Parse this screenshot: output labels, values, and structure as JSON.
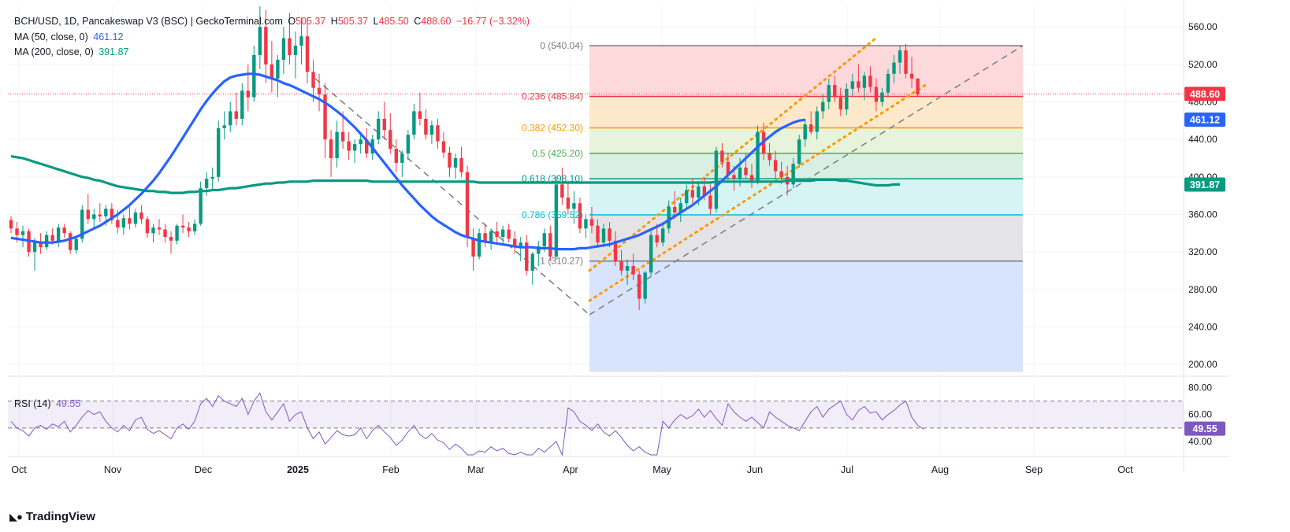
{
  "header": {
    "symbol": "BCH/USD, 1D, Pancakeswap V3 (BSC) | GeckoTerminal.com",
    "o_label": "O",
    "o_value": "505.37",
    "h_label": "H",
    "h_value": "505.37",
    "l_label": "L",
    "l_value": "485.50",
    "c_label": "C",
    "c_value": "488.60",
    "change": "−16.77 (−3.32%)"
  },
  "indicators": {
    "ma50": {
      "label": "MA (50, close, 0)",
      "value": "461.12",
      "color": "#2962ff"
    },
    "ma200": {
      "label": "MA (200, close, 0)",
      "value": "391.87",
      "color": "#089981"
    },
    "rsi": {
      "label": "RSI (14)",
      "value": "49.55",
      "color": "#7e57c2"
    }
  },
  "colors": {
    "up": "#089981",
    "down": "#f23645",
    "grid": "#f0f3fa",
    "axis_text": "#131722"
  },
  "branding": {
    "name": "TradingView"
  },
  "chart_data": {
    "type": "candlestick",
    "title": "BCH/USD, 1D, Pancakeswap V3 (BSC) | GeckoTerminal.com",
    "price_axis": {
      "ticks": [
        "560.00",
        "520.00",
        "480.00",
        "440.00",
        "400.00",
        "360.00",
        "320.00",
        "280.00",
        "240.00",
        "200.00"
      ],
      "range": [
        190,
        582
      ]
    },
    "time_axis": {
      "ticks": [
        "Oct",
        "Nov",
        "Dec",
        "2025",
        "Feb",
        "Mar",
        "Apr",
        "May",
        "Jun",
        "Jul",
        "Aug",
        "Sep",
        "Oct"
      ],
      "bold": [
        "2025"
      ]
    },
    "price_badges": [
      {
        "value": "488.60",
        "color": "#f23645"
      },
      {
        "value": "461.12",
        "color": "#2962ff"
      },
      {
        "value": "391.87",
        "color": "#089981"
      }
    ],
    "current_price": 488.6,
    "fibonacci": [
      {
        "ratio": "0",
        "label": "0 (540.04)",
        "price": 540.04,
        "color": "#787b86",
        "fill": "#fdd7da"
      },
      {
        "ratio": "0.236",
        "label": "0.236 (485.84)",
        "price": 485.84,
        "color": "#f23645",
        "fill": "#fde7c8"
      },
      {
        "ratio": "0.382",
        "label": "0.382 (452.30)",
        "price": 452.3,
        "color": "#ff9800",
        "fill": "#e6f3d9"
      },
      {
        "ratio": "0.5",
        "label": "0.5 (425.20)",
        "price": 425.2,
        "color": "#4caf50",
        "fill": "#d7eee3"
      },
      {
        "ratio": "0.618",
        "label": "0.618 (398.10)",
        "price": 398.1,
        "color": "#089981",
        "fill": "#d5f3f3"
      },
      {
        "ratio": "0.786",
        "label": "0.786 (359.52)",
        "price": 359.52,
        "color": "#00bcd4",
        "fill": "#e3e3e5"
      },
      {
        "ratio": "1",
        "label": "1 (310.27)",
        "price": 310.27,
        "color": "#787b86",
        "fill": "#d6e1fc"
      }
    ],
    "fib_extension_bottom": 192,
    "ohlc_series": [
      [
        354,
        358,
        340,
        345
      ],
      [
        345,
        352,
        330,
        338
      ],
      [
        338,
        348,
        325,
        342
      ],
      [
        342,
        345,
        315,
        320
      ],
      [
        320,
        335,
        300,
        330
      ],
      [
        330,
        340,
        318,
        325
      ],
      [
        325,
        342,
        322,
        338
      ],
      [
        338,
        345,
        328,
        332
      ],
      [
        332,
        350,
        325,
        346
      ],
      [
        346,
        350,
        335,
        340
      ],
      [
        340,
        342,
        318,
        322
      ],
      [
        322,
        336,
        318,
        334
      ],
      [
        334,
        370,
        330,
        365
      ],
      [
        365,
        382,
        350,
        355
      ],
      [
        355,
        366,
        345,
        360
      ],
      [
        360,
        372,
        352,
        358
      ],
      [
        358,
        370,
        348,
        366
      ],
      [
        366,
        372,
        350,
        354
      ],
      [
        354,
        365,
        340,
        346
      ],
      [
        346,
        360,
        338,
        356
      ],
      [
        356,
        368,
        344,
        350
      ],
      [
        350,
        366,
        346,
        362
      ],
      [
        362,
        370,
        350,
        355
      ],
      [
        355,
        358,
        335,
        340
      ],
      [
        340,
        350,
        330,
        346
      ],
      [
        346,
        355,
        338,
        344
      ],
      [
        344,
        350,
        330,
        336
      ],
      [
        336,
        342,
        318,
        332
      ],
      [
        332,
        350,
        328,
        348
      ],
      [
        348,
        360,
        340,
        346
      ],
      [
        346,
        352,
        336,
        342
      ],
      [
        342,
        355,
        338,
        350
      ],
      [
        350,
        395,
        348,
        388
      ],
      [
        388,
        405,
        380,
        398
      ],
      [
        398,
        410,
        385,
        400
      ],
      [
        400,
        460,
        395,
        452
      ],
      [
        452,
        470,
        440,
        455
      ],
      [
        455,
        480,
        448,
        470
      ],
      [
        470,
        490,
        455,
        462
      ],
      [
        462,
        500,
        455,
        492
      ],
      [
        492,
        520,
        470,
        485
      ],
      [
        485,
        540,
        480,
        530
      ],
      [
        530,
        582,
        515,
        560
      ],
      [
        560,
        578,
        500,
        520
      ],
      [
        520,
        545,
        490,
        505
      ],
      [
        505,
        530,
        485,
        525
      ],
      [
        525,
        560,
        510,
        548
      ],
      [
        548,
        575,
        520,
        530
      ],
      [
        530,
        555,
        505,
        540
      ],
      [
        540,
        570,
        520,
        550
      ],
      [
        550,
        568,
        500,
        512
      ],
      [
        512,
        525,
        480,
        495
      ],
      [
        495,
        510,
        470,
        488
      ],
      [
        488,
        500,
        420,
        440
      ],
      [
        440,
        450,
        400,
        420
      ],
      [
        420,
        460,
        410,
        448
      ],
      [
        448,
        470,
        430,
        438
      ],
      [
        438,
        448,
        418,
        428
      ],
      [
        428,
        440,
        415,
        435
      ],
      [
        435,
        448,
        425,
        440
      ],
      [
        440,
        452,
        420,
        425
      ],
      [
        425,
        445,
        418,
        440
      ],
      [
        440,
        470,
        435,
        462
      ],
      [
        462,
        480,
        440,
        450
      ],
      [
        450,
        468,
        425,
        430
      ],
      [
        430,
        440,
        405,
        415
      ],
      [
        415,
        428,
        400,
        425
      ],
      [
        425,
        450,
        418,
        445
      ],
      [
        445,
        478,
        440,
        470
      ],
      [
        470,
        490,
        455,
        462
      ],
      [
        462,
        472,
        440,
        445
      ],
      [
        445,
        460,
        435,
        455
      ],
      [
        455,
        462,
        430,
        438
      ],
      [
        438,
        448,
        420,
        426
      ],
      [
        426,
        432,
        400,
        410
      ],
      [
        410,
        425,
        398,
        420
      ],
      [
        420,
        432,
        400,
        405
      ],
      [
        405,
        412,
        325,
        335
      ],
      [
        335,
        345,
        300,
        315
      ],
      [
        315,
        345,
        312,
        340
      ],
      [
        340,
        350,
        325,
        330
      ],
      [
        330,
        345,
        322,
        342
      ],
      [
        342,
        352,
        330,
        336
      ],
      [
        336,
        348,
        328,
        344
      ],
      [
        344,
        350,
        330,
        334
      ],
      [
        334,
        342,
        318,
        326
      ],
      [
        326,
        336,
        310,
        330
      ],
      [
        330,
        338,
        295,
        300
      ],
      [
        300,
        320,
        285,
        318
      ],
      [
        318,
        332,
        305,
        326
      ],
      [
        326,
        345,
        320,
        340
      ],
      [
        340,
        348,
        310,
        315
      ],
      [
        315,
        400,
        312,
        392
      ],
      [
        392,
        410,
        370,
        378
      ],
      [
        378,
        395,
        360,
        366
      ],
      [
        366,
        385,
        350,
        372
      ],
      [
        372,
        378,
        340,
        345
      ],
      [
        345,
        360,
        335,
        355
      ],
      [
        355,
        368,
        340,
        348
      ],
      [
        348,
        355,
        325,
        330
      ],
      [
        330,
        350,
        325,
        345
      ],
      [
        345,
        352,
        325,
        332
      ],
      [
        332,
        342,
        305,
        310
      ],
      [
        310,
        322,
        295,
        300
      ],
      [
        300,
        312,
        285,
        305
      ],
      [
        305,
        318,
        290,
        296
      ],
      [
        296,
        300,
        258,
        270
      ],
      [
        270,
        300,
        265,
        298
      ],
      [
        298,
        345,
        294,
        338
      ],
      [
        338,
        350,
        325,
        330
      ],
      [
        330,
        352,
        326,
        345
      ],
      [
        345,
        375,
        340,
        368
      ],
      [
        368,
        385,
        355,
        362
      ],
      [
        362,
        378,
        352,
        372
      ],
      [
        372,
        392,
        366,
        386
      ],
      [
        386,
        398,
        372,
        378
      ],
      [
        378,
        394,
        370,
        390
      ],
      [
        390,
        400,
        375,
        380
      ],
      [
        380,
        392,
        360,
        366
      ],
      [
        366,
        432,
        362,
        428
      ],
      [
        428,
        436,
        410,
        416
      ],
      [
        416,
        426,
        395,
        402
      ],
      [
        402,
        412,
        385,
        398
      ],
      [
        398,
        420,
        390,
        410
      ],
      [
        410,
        425,
        398,
        402
      ],
      [
        402,
        414,
        388,
        395
      ],
      [
        395,
        455,
        392,
        448
      ],
      [
        448,
        458,
        418,
        425
      ],
      [
        425,
        436,
        412,
        418
      ],
      [
        418,
        428,
        398,
        406
      ],
      [
        406,
        416,
        392,
        400
      ],
      [
        400,
        412,
        380,
        392
      ],
      [
        392,
        420,
        388,
        414
      ],
      [
        414,
        445,
        410,
        440
      ],
      [
        440,
        462,
        432,
        456
      ],
      [
        456,
        470,
        445,
        448
      ],
      [
        448,
        475,
        440,
        470
      ],
      [
        470,
        488,
        462,
        480
      ],
      [
        480,
        505,
        472,
        498
      ],
      [
        498,
        508,
        480,
        485
      ],
      [
        485,
        495,
        465,
        472
      ],
      [
        472,
        500,
        466,
        494
      ],
      [
        494,
        510,
        486,
        502
      ],
      [
        502,
        520,
        490,
        495
      ],
      [
        495,
        512,
        482,
        508
      ],
      [
        508,
        518,
        490,
        496
      ],
      [
        496,
        505,
        470,
        480
      ],
      [
        480,
        495,
        475,
        490
      ],
      [
        490,
        515,
        486,
        510
      ],
      [
        510,
        530,
        500,
        522
      ],
      [
        522,
        540,
        510,
        535
      ],
      [
        535,
        542,
        505,
        510
      ],
      [
        510,
        528,
        495,
        505
      ],
      [
        505,
        505,
        485,
        488
      ]
    ],
    "ma200_values": [
      422,
      421,
      420,
      418,
      416,
      414,
      412,
      410,
      408,
      406,
      404,
      402,
      400,
      399,
      397,
      396,
      394,
      392,
      390,
      389,
      388,
      387,
      386,
      385,
      385,
      384,
      384,
      383,
      383,
      383,
      384,
      384,
      385,
      385,
      386,
      386,
      387,
      388,
      388,
      389,
      390,
      391,
      392,
      393,
      393,
      394,
      394,
      395,
      395,
      395,
      395,
      396,
      396,
      396,
      396,
      396,
      396,
      396,
      396,
      396,
      396,
      395,
      395,
      395,
      395,
      395,
      395,
      395,
      395,
      395,
      395,
      395,
      395,
      395,
      395,
      395,
      395,
      395,
      395,
      394,
      394,
      394,
      394,
      394,
      394,
      394,
      394,
      394,
      394,
      394,
      394,
      394,
      394,
      394,
      394,
      394,
      394,
      394,
      394,
      394,
      394,
      394,
      394,
      394,
      394,
      394,
      394,
      394,
      394,
      394,
      394,
      394,
      394,
      394,
      394,
      394,
      394,
      394,
      394,
      395,
      395,
      395,
      395,
      395,
      395,
      395,
      395,
      395,
      395,
      395,
      395,
      396,
      396,
      396,
      396,
      396,
      397,
      397,
      397,
      397,
      396,
      396,
      395,
      394,
      393,
      392,
      391,
      391,
      391,
      392,
      392
    ],
    "ma50_values": [
      335,
      334,
      333,
      332,
      331,
      330,
      330,
      330,
      331,
      332,
      334,
      336,
      339,
      342,
      345,
      348,
      352,
      356,
      360,
      365,
      370,
      376,
      382,
      389,
      396,
      404,
      413,
      422,
      432,
      442,
      452,
      462,
      472,
      481,
      489,
      496,
      502,
      506,
      508,
      509,
      510,
      510,
      509,
      507,
      505,
      503,
      500,
      498,
      495,
      492,
      489,
      486,
      483,
      479,
      475,
      470,
      465,
      459,
      453,
      446,
      439,
      431,
      423,
      415,
      407,
      399,
      391,
      384,
      377,
      370,
      364,
      358,
      353,
      349,
      345,
      341,
      338,
      336,
      334,
      332,
      331,
      330,
      329,
      328,
      327,
      326,
      325,
      325,
      325,
      324,
      324,
      324,
      323,
      323,
      323,
      323,
      324,
      324,
      325,
      326,
      327,
      328,
      330,
      332,
      334,
      336,
      338,
      341,
      344,
      347,
      350,
      354,
      358,
      362,
      366,
      370,
      375,
      380,
      385,
      390,
      396,
      402,
      408,
      414,
      420,
      426,
      432,
      438,
      443,
      448,
      452,
      455,
      458,
      460,
      461
    ],
    "rsi_values": [
      55,
      50,
      48,
      44,
      50,
      52,
      49,
      53,
      51,
      55,
      47,
      52,
      58,
      63,
      60,
      62,
      55,
      50,
      47,
      52,
      48,
      56,
      58,
      49,
      46,
      48,
      45,
      42,
      50,
      53,
      49,
      55,
      68,
      72,
      66,
      74,
      70,
      68,
      66,
      72,
      60,
      70,
      76,
      62,
      56,
      62,
      68,
      55,
      60,
      62,
      50,
      42,
      47,
      38,
      43,
      48,
      45,
      44,
      45,
      50,
      42,
      48,
      52,
      47,
      43,
      37,
      41,
      47,
      52,
      45,
      42,
      46,
      41,
      39,
      34,
      38,
      35,
      28,
      26,
      33,
      32,
      36,
      33,
      35,
      31,
      28,
      32,
      22,
      25,
      35,
      32,
      36,
      40,
      30,
      65,
      62,
      55,
      52,
      48,
      53,
      47,
      44,
      48,
      43,
      37,
      33,
      36,
      32,
      26,
      30,
      55,
      50,
      56,
      60,
      57,
      59,
      64,
      58,
      63,
      57,
      52,
      68,
      62,
      58,
      55,
      58,
      54,
      50,
      62,
      58,
      55,
      52,
      50,
      48,
      55,
      62,
      66,
      58,
      64,
      67,
      70,
      60,
      56,
      63,
      66,
      61,
      62,
      56,
      60,
      63,
      67,
      70,
      58,
      52,
      49
    ],
    "rsi_axis": {
      "ticks": [
        "80.00",
        "60.00",
        "40.00"
      ],
      "range": [
        30,
        85
      ],
      "upper_band": 70,
      "lower_band": 50
    }
  }
}
